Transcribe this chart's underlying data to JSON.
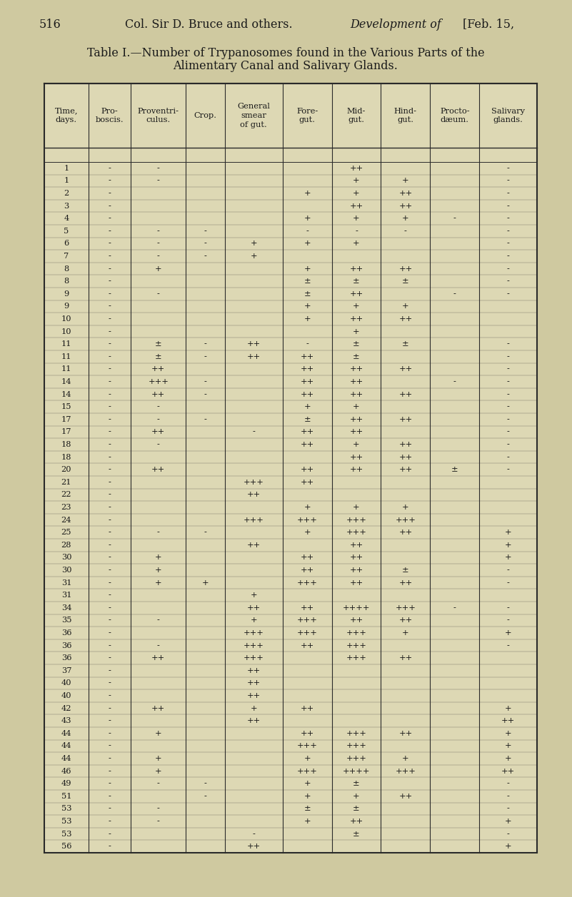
{
  "bg_color": "#cfc9a0",
  "table_bg": "#ddd8b4",
  "text_color": "#1a1a1a",
  "line_color": "#2a2a2a",
  "col_headers": [
    "Time,\ndays.",
    "Pro-\nboscis.",
    "Proventri-\nculus.",
    "Crop.",
    "General\nsmear\nof gut.",
    "Fore-\ngut.",
    "Mid-\ngut.",
    "Hind-\ngut.",
    "Procto-\ndæum.",
    "Salivary\nglands."
  ],
  "rows": [
    [
      "1",
      "-",
      "-",
      "",
      "",
      "",
      "++",
      "",
      "",
      "-"
    ],
    [
      "1",
      "-",
      "-",
      "",
      "",
      "",
      "+",
      "+",
      "",
      "-"
    ],
    [
      "2",
      "-",
      "",
      "",
      "",
      "+",
      "+",
      "++",
      "",
      "-"
    ],
    [
      "3",
      "-",
      "",
      "",
      "",
      "",
      "++",
      "++",
      "",
      "-"
    ],
    [
      "4",
      "-",
      "",
      "",
      "",
      "+",
      "+",
      "+",
      "-",
      "-"
    ],
    [
      "5",
      "-",
      "-",
      "-",
      "",
      "-",
      "-",
      "-",
      "",
      "-"
    ],
    [
      "6",
      "-",
      "-",
      "-",
      "+",
      "+",
      "+",
      "",
      "",
      "-"
    ],
    [
      "7",
      "-",
      "-",
      "-",
      "+",
      "",
      "",
      "",
      "",
      "-"
    ],
    [
      "8",
      "-",
      "+",
      "",
      "",
      "+",
      "++",
      "++",
      "",
      "-"
    ],
    [
      "8",
      "-",
      "",
      "",
      "",
      "±",
      "±",
      "±",
      "",
      "-"
    ],
    [
      "9",
      "-",
      "-",
      "",
      "",
      "±",
      "++",
      "",
      "-",
      "-"
    ],
    [
      "9",
      "-",
      "",
      "",
      "",
      "+",
      "+",
      "+",
      "",
      ""
    ],
    [
      "10",
      "-",
      "",
      "",
      "",
      "+",
      "++",
      "++",
      "",
      ""
    ],
    [
      "10",
      "-",
      "",
      "",
      "",
      "",
      "+",
      "",
      "",
      ""
    ],
    [
      "11",
      "-",
      "±",
      "-",
      "++",
      "-",
      "±",
      "±",
      "",
      "-"
    ],
    [
      "11",
      "-",
      "±",
      "-",
      "++",
      "++",
      "±",
      "",
      "",
      "-"
    ],
    [
      "11",
      "-",
      "++",
      "",
      "",
      "++",
      "++",
      "++",
      "",
      "-"
    ],
    [
      "14",
      "-",
      "+++",
      "-",
      "",
      "++",
      "++",
      "",
      "-",
      "-"
    ],
    [
      "14",
      "-",
      "++",
      "-",
      "",
      "++",
      "++",
      "++",
      "",
      "-"
    ],
    [
      "15",
      "-",
      "-",
      "",
      "",
      "+",
      "+",
      "",
      "",
      "-"
    ],
    [
      "17",
      "-",
      "-",
      "-",
      "",
      "±",
      "++",
      "++",
      "",
      "-"
    ],
    [
      "17",
      "-",
      "++",
      "",
      "-",
      "++",
      "++",
      "",
      "",
      "-"
    ],
    [
      "18",
      "-",
      "-",
      "",
      "",
      "++",
      "+",
      "++",
      "",
      "-"
    ],
    [
      "18",
      "-",
      "",
      "",
      "",
      "",
      "++",
      "++",
      "",
      "-"
    ],
    [
      "20",
      "-",
      "++",
      "",
      "",
      "++",
      "++",
      "++",
      "±",
      "-"
    ],
    [
      "21",
      "-",
      "",
      "",
      "+++",
      "++",
      "",
      "",
      "",
      ""
    ],
    [
      "22",
      "-",
      "",
      "",
      "++",
      "",
      "",
      "",
      "",
      ""
    ],
    [
      "23",
      "-",
      "",
      "",
      "",
      "+",
      "+",
      "+",
      "",
      ""
    ],
    [
      "24",
      "-",
      "",
      "",
      "+++",
      "+++",
      "+++",
      "+++",
      "",
      ""
    ],
    [
      "25",
      "-",
      "-",
      "-",
      "",
      "+",
      "+++",
      "++",
      "",
      "+"
    ],
    [
      "28",
      "-",
      "",
      "",
      "++",
      "",
      "++",
      "",
      "",
      "+"
    ],
    [
      "30",
      "-",
      "+",
      "",
      "",
      "++",
      "++",
      "",
      "",
      "+"
    ],
    [
      "30",
      "-",
      "+",
      "",
      "",
      "++",
      "++",
      "±",
      "",
      "-"
    ],
    [
      "31",
      "-",
      "+",
      "+",
      "",
      "+++",
      "++",
      "++",
      "",
      "-"
    ],
    [
      "31",
      "-",
      "",
      "",
      "+",
      "",
      "",
      "",
      "",
      ""
    ],
    [
      "34",
      "-",
      "",
      "",
      "++",
      "++",
      "++++",
      "+++",
      "-",
      "-"
    ],
    [
      "35",
      "-",
      "-",
      "",
      "+",
      "+++",
      "++",
      "++",
      "",
      "-"
    ],
    [
      "36",
      "-",
      "",
      "",
      "+++",
      "+++",
      "+++",
      "+",
      "",
      "+"
    ],
    [
      "36",
      "-",
      "-",
      "",
      "+++",
      "++",
      "+++",
      "",
      "",
      "-"
    ],
    [
      "36",
      "-",
      "++",
      "",
      "+++",
      "",
      "+++",
      "++",
      "",
      ""
    ],
    [
      "37",
      "-",
      "",
      "",
      "++",
      "",
      "",
      "",
      "",
      ""
    ],
    [
      "40",
      "-",
      "",
      "",
      "++",
      "",
      "",
      "",
      "",
      ""
    ],
    [
      "40",
      "-",
      "",
      "",
      "++",
      "",
      "",
      "",
      "",
      ""
    ],
    [
      "42",
      "-",
      "++",
      "",
      "+",
      "++",
      "",
      "",
      "",
      "+"
    ],
    [
      "43",
      "-",
      "",
      "",
      "++",
      "",
      "",
      "",
      "",
      "++"
    ],
    [
      "44",
      "-",
      "+",
      "",
      "",
      "++",
      "+++",
      "++",
      "",
      "+"
    ],
    [
      "44",
      "-",
      "",
      "",
      "",
      "+++",
      "+++",
      "",
      "",
      "+"
    ],
    [
      "44",
      "-",
      "+",
      "",
      "",
      "+",
      "+++",
      "+",
      "",
      "+"
    ],
    [
      "46",
      "-",
      "+",
      "",
      "",
      "+++",
      "++++",
      "+++",
      "",
      "++"
    ],
    [
      "49",
      "-",
      "-",
      "-",
      "",
      "+",
      "±",
      "",
      "",
      "-"
    ],
    [
      "51",
      "-",
      "",
      "-",
      "",
      "+",
      "+",
      "++",
      "",
      "-"
    ],
    [
      "53",
      "-",
      "-",
      "",
      "",
      "±",
      "±",
      "",
      "",
      "-"
    ],
    [
      "53",
      "-",
      "-",
      "",
      "",
      "+",
      "++",
      "",
      "",
      "+"
    ],
    [
      "53",
      "-",
      "",
      "",
      "-",
      "",
      "±",
      "",
      "",
      "-"
    ],
    [
      "56",
      "-",
      "",
      "",
      "++",
      "",
      "",
      "",
      "",
      "+"
    ]
  ]
}
